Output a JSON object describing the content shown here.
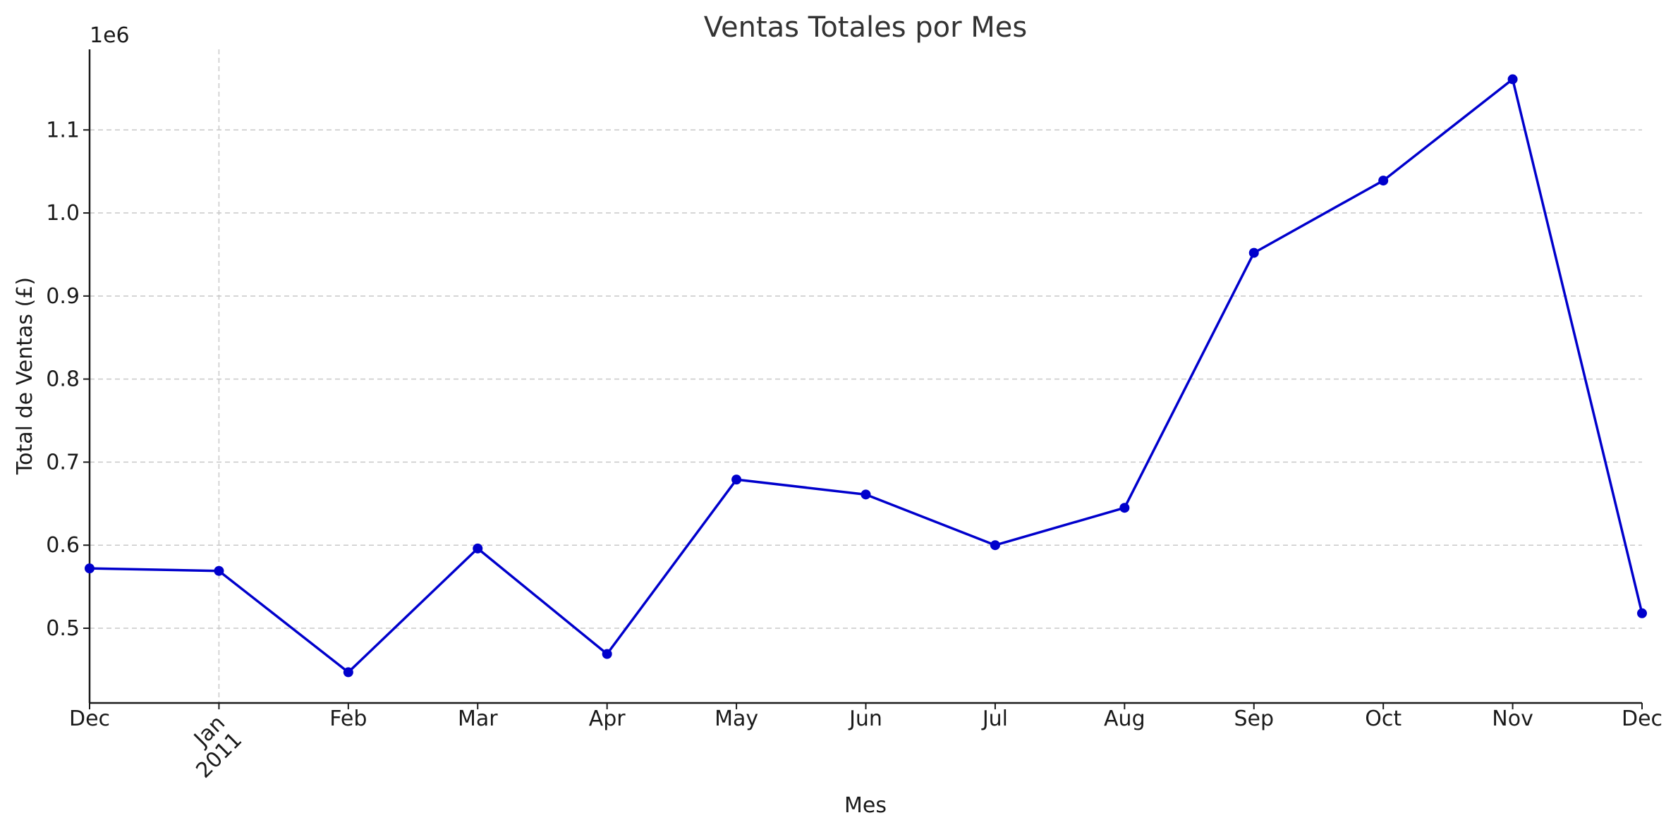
{
  "chart_data": {
    "type": "line",
    "title": "Ventas Totales por Mes",
    "xlabel": "Mes",
    "ylabel": "Total de Ventas (£)",
    "y_offset_label": "1e6",
    "x": [
      "2010-12",
      "2011-01",
      "2011-02",
      "2011-03",
      "2011-04",
      "2011-05",
      "2011-06",
      "2011-07",
      "2011-08",
      "2011-09",
      "2011-10",
      "2011-11",
      "2011-12"
    ],
    "x_tick_labels": [
      "Dec",
      "Jan\n2011",
      "Feb",
      "Mar",
      "Apr",
      "May",
      "Jun",
      "Jul",
      "Aug",
      "Sep",
      "Oct",
      "Nov",
      "Dec"
    ],
    "series": [
      {
        "values": [
          0.572,
          0.569,
          0.447,
          0.596,
          0.469,
          0.679,
          0.661,
          0.6,
          0.645,
          0.952,
          1.039,
          1.161,
          0.518
        ]
      }
    ],
    "y_unit_multiplier": 1000000,
    "ylim": [
      0.41,
      1.197
    ],
    "y_ticks": [
      0.5,
      0.6,
      0.7,
      0.8,
      0.9,
      1.0,
      1.1
    ],
    "y_tick_labels": [
      "0.5",
      "0.6",
      "0.7",
      "0.8",
      "0.9",
      "1.0",
      "1.1"
    ],
    "grid": true,
    "line_color": "#0000cc",
    "marker_color": "#0000cc"
  }
}
